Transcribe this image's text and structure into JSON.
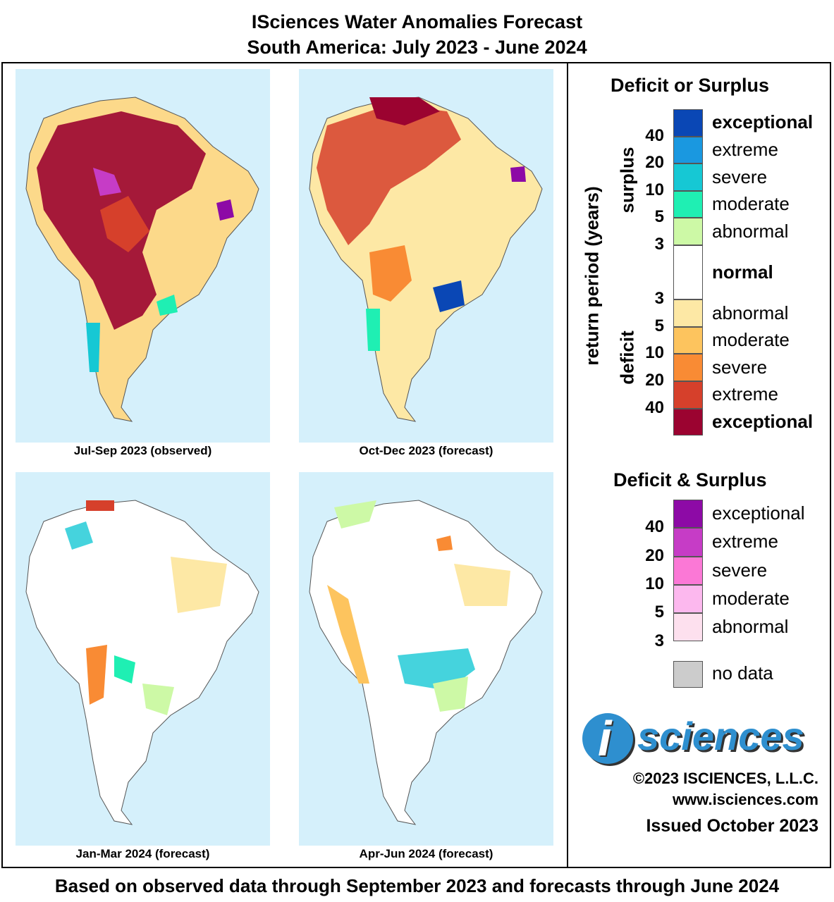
{
  "header": {
    "title_line1": "ISciences Water Anomalies Forecast",
    "title_line2": "South America: July 2023 - June 2024"
  },
  "panels": [
    {
      "caption": "Jul-Sep 2023 (observed)"
    },
    {
      "caption": "Oct-Dec 2023 (forecast)"
    },
    {
      "caption": "Jan-Mar 2024 (forecast)"
    },
    {
      "caption": "Apr-Jun 2024 (forecast)"
    }
  ],
  "legend": {
    "deficit_or_surplus_title": "Deficit or Surplus",
    "axis_label": "return period (years)",
    "surplus_label": "surplus",
    "deficit_label": "deficit",
    "surplus_classes": [
      {
        "label": "exceptional",
        "color": "#0a47b5"
      },
      {
        "label": "extreme",
        "color": "#1a98e0"
      },
      {
        "label": "severe",
        "color": "#16c8d4"
      },
      {
        "label": "moderate",
        "color": "#1fefb3"
      },
      {
        "label": "abnormal",
        "color": "#cdf9a6"
      }
    ],
    "normal_label": "normal",
    "normal_color": "#ffffff",
    "deficit_classes": [
      {
        "label": "abnormal",
        "color": "#fde8a5"
      },
      {
        "label": "moderate",
        "color": "#fdc45e"
      },
      {
        "label": "severe",
        "color": "#f98b34"
      },
      {
        "label": "extreme",
        "color": "#d6402b"
      },
      {
        "label": "exceptional",
        "color": "#9b0330"
      }
    ],
    "surplus_ticks": [
      "40",
      "20",
      "10",
      "5",
      "3"
    ],
    "deficit_ticks": [
      "3",
      "5",
      "10",
      "20",
      "40"
    ],
    "both_title": "Deficit & Surplus",
    "both_classes": [
      {
        "label": "exceptional",
        "color": "#8d0aa6"
      },
      {
        "label": "extreme",
        "color": "#c63cc6"
      },
      {
        "label": "severe",
        "color": "#fb78d6"
      },
      {
        "label": "moderate",
        "color": "#fcb8ee"
      },
      {
        "label": "abnormal",
        "color": "#fde0ee"
      }
    ],
    "both_ticks": [
      "40",
      "20",
      "10",
      "5",
      "3"
    ],
    "no_data_label": "no data",
    "no_data_color": "#cccccc"
  },
  "branding": {
    "logo_letter": "i",
    "logo_word": "sciences",
    "copyright": "©2023 ISCIENCES, L.L.C.",
    "website": "www.isciences.com",
    "issued": "Issued October 2023"
  },
  "footer": {
    "note": "Based on observed data through September 2023 and forecasts through June 2024"
  }
}
